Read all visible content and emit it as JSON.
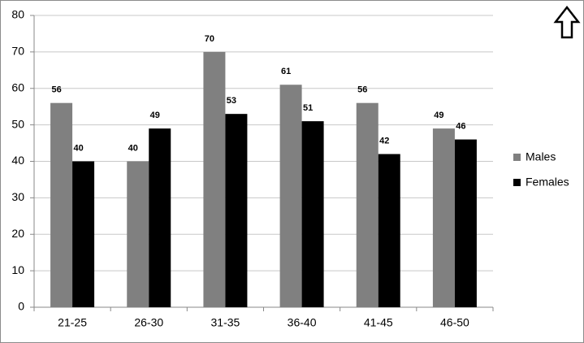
{
  "chart_data": {
    "type": "bar",
    "categories": [
      "21-25",
      "26-30",
      "31-35",
      "36-40",
      "41-45",
      "46-50"
    ],
    "series": [
      {
        "name": "Males",
        "color": "#808080",
        "values": [
          56,
          40,
          70,
          61,
          56,
          49
        ]
      },
      {
        "name": "Females",
        "color": "#000000",
        "values": [
          40,
          49,
          53,
          51,
          42,
          46
        ]
      }
    ],
    "ylim": [
      0,
      80
    ],
    "yticks": [
      0,
      10,
      20,
      30,
      40,
      50,
      60,
      70,
      80
    ],
    "grid": true,
    "legend": "right"
  }
}
